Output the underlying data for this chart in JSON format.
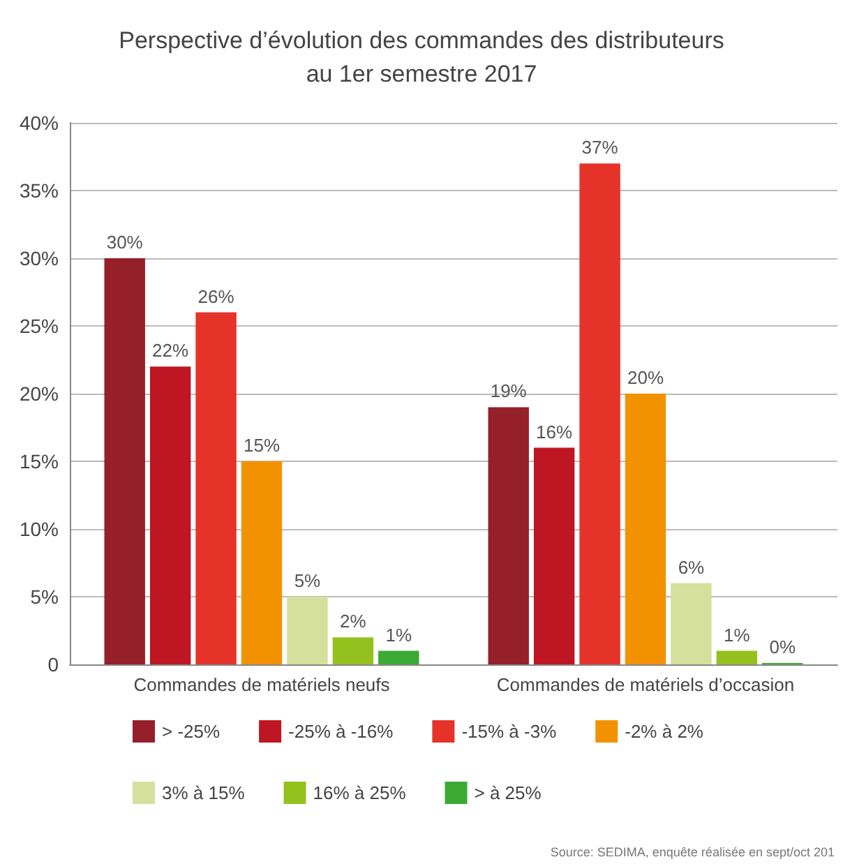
{
  "chart_data": {
    "type": "bar",
    "title": "Perspective d’évolution des commandes des distributeurs\nau 1er semestre 2017",
    "categories": [
      "Commandes de matériels neufs",
      "Commandes de matériels d’occasion"
    ],
    "series": [
      {
        "name": "> -25%",
        "color": "#95202a",
        "values": [
          30,
          19
        ],
        "value_labels": [
          "30%",
          "19%"
        ]
      },
      {
        "name": "-25% à -16%",
        "color": "#be1622",
        "values": [
          22,
          16
        ],
        "value_labels": [
          "22%",
          "16%"
        ]
      },
      {
        "name": "-15% à -3%",
        "color": "#e6332a",
        "values": [
          26,
          37
        ],
        "value_labels": [
          "26%",
          "37%"
        ]
      },
      {
        "name": "-2% à 2%",
        "color": "#f39200",
        "values": [
          15,
          20
        ],
        "value_labels": [
          "15%",
          "20%"
        ]
      },
      {
        "name": "3% à 15%",
        "color": "#d4e09b",
        "values": [
          5,
          6
        ],
        "value_labels": [
          "5%",
          "6%"
        ]
      },
      {
        "name": "16% à 25%",
        "color": "#95c11f",
        "values": [
          2,
          1
        ],
        "value_labels": [
          "2%",
          "1%"
        ]
      },
      {
        "name": "> à 25%",
        "color": "#3aaa35",
        "values": [
          1,
          0
        ],
        "value_labels": [
          "1%",
          "0%"
        ]
      }
    ],
    "ylim": [
      0,
      40
    ],
    "yticks": [
      {
        "value": 0,
        "label": "0"
      },
      {
        "value": 5,
        "label": "5%"
      },
      {
        "value": 10,
        "label": "10%"
      },
      {
        "value": 15,
        "label": "15%"
      },
      {
        "value": 20,
        "label": "20%"
      },
      {
        "value": 25,
        "label": "25%"
      },
      {
        "value": 30,
        "label": "30%"
      },
      {
        "value": 35,
        "label": "35%"
      },
      {
        "value": 40,
        "label": "40%"
      }
    ],
    "grid": "y",
    "legend": "bottom",
    "annotations": [
      "Source: SEDIMA, enquête réalisée en sept/oct 201"
    ]
  }
}
